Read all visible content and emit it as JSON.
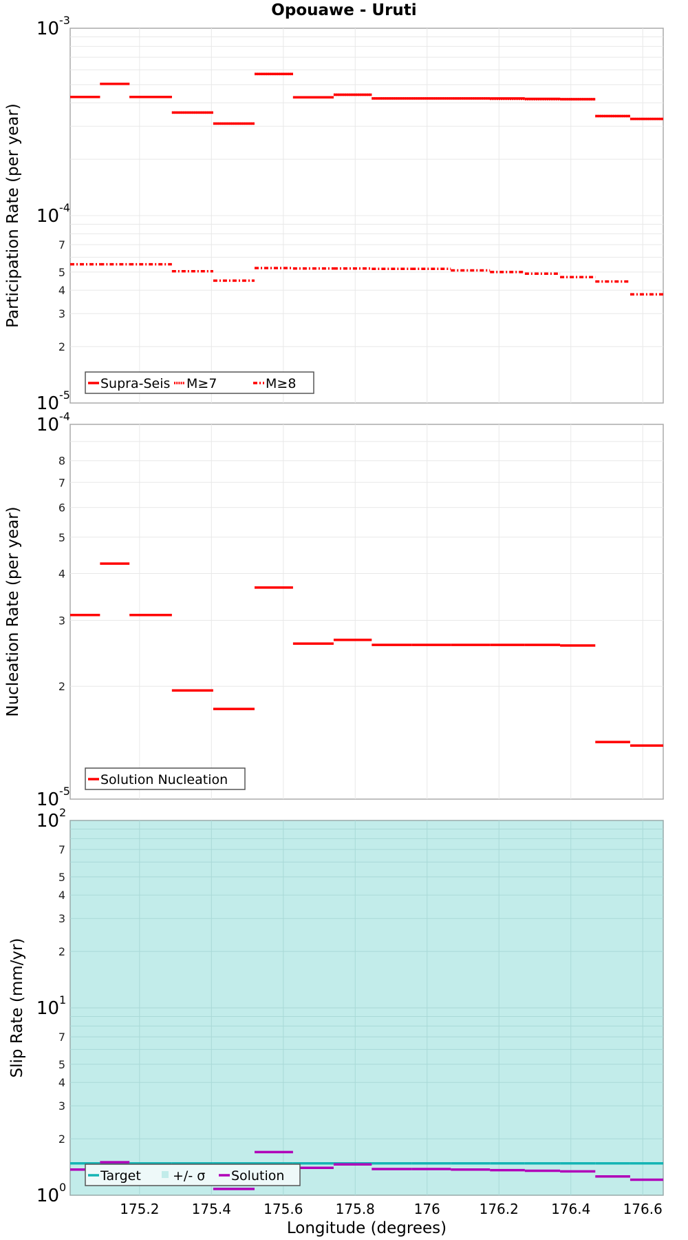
{
  "title": "Opouawe - Uruti",
  "colors": {
    "red": "#ff0000",
    "target": "#14b4b4",
    "sigma_fill": "#c2ecea",
    "solution": "#b000b8",
    "solution_faint": "#e8b4e8",
    "grid": "#e8e8e8",
    "grid_on_fill": "#a9d9d7",
    "frame": "#aaaaaa"
  },
  "x_axis": {
    "label": "Longitude (degrees)",
    "min": 175.007,
    "max": 176.657,
    "ticks": [
      175.2,
      175.4,
      175.6,
      175.8,
      176,
      176.2,
      176.4,
      176.6
    ],
    "tick_labels": [
      "175.2",
      "175.4",
      "175.6",
      "175.8",
      "176",
      "176.2",
      "176.4",
      "176.6"
    ]
  },
  "chart_data": [
    {
      "type": "line",
      "subtype": "step-segments",
      "title": "Opouawe - Uruti",
      "ylabel": "Participation Rate (per year)",
      "xlabel": "Longitude (degrees)",
      "yscale": "log",
      "ylim": [
        1e-05,
        0.001
      ],
      "grid": true,
      "legend_position": "lower-left",
      "y_major_labels": [
        {
          "base": "10",
          "exp": "-3",
          "value": 0.001
        },
        {
          "base": "10",
          "exp": "-4",
          "value": 0.0001
        },
        {
          "base": "10",
          "exp": "-5",
          "value": 1e-05
        }
      ],
      "y_minor_labels": [
        "7",
        "5",
        "4",
        "3",
        "2"
      ],
      "segments_x": [
        [
          175.007,
          175.09
        ],
        [
          175.09,
          175.172
        ],
        [
          175.172,
          175.29
        ],
        [
          175.29,
          175.405
        ],
        [
          175.405,
          175.52
        ],
        [
          175.52,
          175.627
        ],
        [
          175.627,
          175.74
        ],
        [
          175.74,
          175.846
        ],
        [
          175.846,
          175.957
        ],
        [
          175.957,
          176.066
        ],
        [
          176.066,
          176.175
        ],
        [
          176.175,
          176.272
        ],
        [
          176.272,
          176.37
        ],
        [
          176.37,
          176.468
        ],
        [
          176.468,
          176.565
        ],
        [
          176.565,
          176.657
        ]
      ],
      "series": [
        {
          "name": "Supra-Seis",
          "style": "solid",
          "values": [
            0.00043,
            0.000505,
            0.00043,
            0.000355,
            0.00031,
            0.00057,
            0.000428,
            0.000442,
            0.000422,
            0.000422,
            0.000422,
            0.000422,
            0.00042,
            0.000418,
            0.00034,
            0.000328
          ]
        },
        {
          "name": "M≥7",
          "style": "dotted",
          "values": [
            0.00043,
            0.000505,
            0.00043,
            0.000355,
            0.00031,
            0.00057,
            0.000428,
            0.000442,
            0.000422,
            0.000422,
            0.000422,
            0.00042,
            0.000418,
            0.000418,
            0.00034,
            0.000328
          ]
        },
        {
          "name": "M≥8",
          "style": "dashdot",
          "values": [
            5.5e-05,
            5.5e-05,
            5.5e-05,
            5.05e-05,
            4.5e-05,
            5.25e-05,
            5.22e-05,
            5.22e-05,
            5.2e-05,
            5.2e-05,
            5.1e-05,
            5e-05,
            4.9e-05,
            4.7e-05,
            4.45e-05,
            3.8e-05
          ]
        }
      ]
    },
    {
      "type": "line",
      "subtype": "step-segments",
      "ylabel": "Nucleation Rate (per year)",
      "xlabel": "Longitude (degrees)",
      "yscale": "log",
      "ylim": [
        1e-05,
        0.0001
      ],
      "grid": true,
      "legend_position": "lower-left",
      "y_major_labels": [
        {
          "base": "10",
          "exp": "-4",
          "value": 0.0001
        },
        {
          "base": "10",
          "exp": "-5",
          "value": 1e-05
        }
      ],
      "y_minor_labels": [
        "8",
        "7",
        "6",
        "5",
        "4",
        "3",
        "2"
      ],
      "segments_x": [
        [
          175.007,
          175.09
        ],
        [
          175.09,
          175.172
        ],
        [
          175.172,
          175.29
        ],
        [
          175.29,
          175.405
        ],
        [
          175.405,
          175.52
        ],
        [
          175.52,
          175.627
        ],
        [
          175.627,
          175.74
        ],
        [
          175.74,
          175.846
        ],
        [
          175.846,
          175.957
        ],
        [
          175.957,
          176.066
        ],
        [
          176.066,
          176.175
        ],
        [
          176.175,
          176.272
        ],
        [
          176.272,
          176.37
        ],
        [
          176.37,
          176.468
        ],
        [
          176.468,
          176.565
        ],
        [
          176.565,
          176.657
        ]
      ],
      "series": [
        {
          "name": "Solution Nucleation",
          "style": "solid",
          "values": [
            3.1e-05,
            4.25e-05,
            3.1e-05,
            1.95e-05,
            1.74e-05,
            3.67e-05,
            2.6e-05,
            2.66e-05,
            2.58e-05,
            2.58e-05,
            2.58e-05,
            2.58e-05,
            2.58e-05,
            2.57e-05,
            1.42e-05,
            1.39e-05
          ]
        }
      ]
    },
    {
      "type": "line",
      "subtype": "step-segments",
      "ylabel": "Slip Rate (mm/yr)",
      "xlabel": "Longitude (degrees)",
      "yscale": "log",
      "ylim": [
        1,
        100
      ],
      "grid": true,
      "legend_position": "lower-left",
      "y_major_labels": [
        {
          "base": "10",
          "exp": "2",
          "value": 100
        },
        {
          "base": "10",
          "exp": "1",
          "value": 10
        },
        {
          "base": "10",
          "exp": "0",
          "value": 1
        }
      ],
      "y_minor_labels_upper": [
        "7",
        "5",
        "4",
        "3",
        "2"
      ],
      "y_minor_labels_lower": [
        "7",
        "5",
        "4",
        "3",
        "2"
      ],
      "segments_x": [
        [
          175.007,
          175.09
        ],
        [
          175.09,
          175.172
        ],
        [
          175.172,
          175.29
        ],
        [
          175.29,
          175.405
        ],
        [
          175.405,
          175.52
        ],
        [
          175.52,
          175.627
        ],
        [
          175.627,
          175.74
        ],
        [
          175.74,
          175.846
        ],
        [
          175.846,
          175.957
        ],
        [
          175.957,
          176.066
        ],
        [
          176.066,
          176.175
        ],
        [
          176.175,
          176.272
        ],
        [
          176.272,
          176.37
        ],
        [
          176.37,
          176.468
        ],
        [
          176.468,
          176.565
        ],
        [
          176.565,
          176.657
        ]
      ],
      "sigma_band": [
        1,
        100
      ],
      "series": [
        {
          "name": "Target",
          "style": "solid",
          "values": [
            1.48,
            1.48,
            1.48,
            1.48,
            1.48,
            1.48,
            1.48,
            1.48,
            1.48,
            1.48,
            1.48,
            1.48,
            1.48,
            1.48,
            1.48,
            1.48
          ]
        },
        {
          "name": "+/- σ",
          "style": "fill",
          "values": [
            100,
            100,
            100,
            100,
            100,
            100,
            100,
            100,
            100,
            100,
            100,
            100,
            100,
            100,
            100,
            100
          ]
        },
        {
          "name": "Solution",
          "style": "solid",
          "values": [
            1.37,
            1.5,
            1.37,
            1.22,
            1.08,
            1.7,
            1.4,
            1.46,
            1.38,
            1.38,
            1.37,
            1.36,
            1.35,
            1.34,
            1.26,
            1.21
          ]
        }
      ]
    }
  ],
  "legends": {
    "top": [
      {
        "label": "Supra-Seis"
      },
      {
        "label": "M≥7"
      },
      {
        "label": "M≥8"
      }
    ],
    "middle": [
      {
        "label": "Solution Nucleation"
      }
    ],
    "bottom": [
      {
        "label": "Target"
      },
      {
        "label": "+/- σ"
      },
      {
        "label": "Solution"
      }
    ]
  }
}
